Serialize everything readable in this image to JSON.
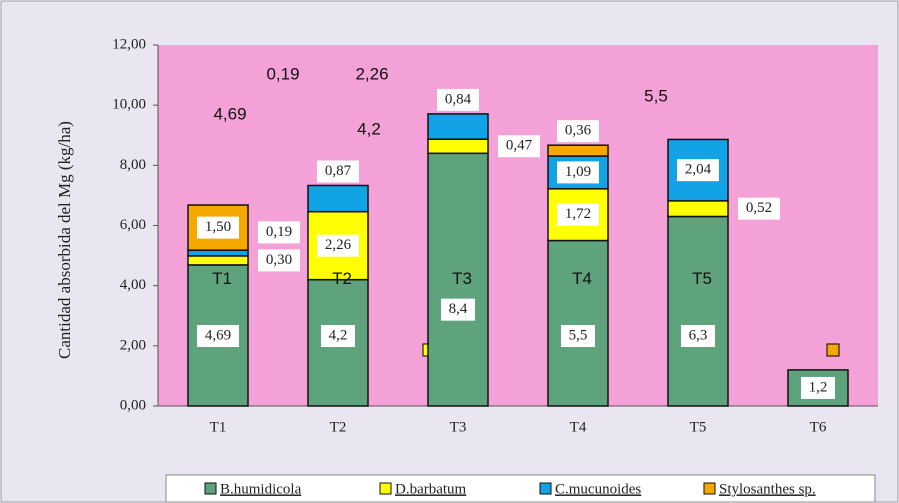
{
  "chart_data": {
    "type": "stacked_bar",
    "y_label": "Cantidad absorbida del Mg  (kg/ha)",
    "categories": [
      "T1",
      "T2",
      "T3",
      "T4",
      "T5",
      "T6"
    ],
    "series": [
      {
        "name": "B.humidicola",
        "color": "#5fa37c",
        "values": [
          4.69,
          4.2,
          8.4,
          5.5,
          6.3,
          1.2
        ],
        "value_labels": [
          "4,69",
          "4,2",
          "8,4",
          "5,5",
          "6,3",
          "1,2"
        ]
      },
      {
        "name": "D.barbatum",
        "color": "#ffff00",
        "values": [
          0.3,
          2.26,
          0.47,
          1.72,
          0.52,
          0
        ],
        "value_labels": [
          "0,30",
          "2,26",
          "0,47",
          "1,72",
          "0,52",
          null
        ]
      },
      {
        "name": "C.mucunoides",
        "color": "#12a2e6",
        "values": [
          0.19,
          0.87,
          0.84,
          1.09,
          2.04,
          0
        ],
        "value_labels": [
          "0,19",
          "0,87",
          "0,84",
          "1,09",
          "2,04",
          null
        ]
      },
      {
        "name": "Stylosanthes sp.",
        "color": "#f5a800",
        "values": [
          1.5,
          0,
          0,
          0.36,
          0,
          0
        ],
        "value_labels": [
          "1,50",
          null,
          null,
          "0,36",
          null,
          null
        ]
      }
    ],
    "ylim": [
      0,
      12
    ],
    "yticks": [
      {
        "value": 0,
        "label": "0,00"
      },
      {
        "value": 2,
        "label": "2,00"
      },
      {
        "value": 4,
        "label": "4,00"
      },
      {
        "value": 6,
        "label": "6,00"
      },
      {
        "value": 8,
        "label": "8,00"
      },
      {
        "value": 10,
        "label": "10,00"
      },
      {
        "value": 12,
        "label": "12,00"
      }
    ],
    "overlay_labels": [
      "T1",
      "T2",
      "T3",
      "T4",
      "T5"
    ],
    "overlay_values": [
      "0,19",
      "2,26",
      "4,69",
      "4,2",
      "5,5"
    ]
  }
}
